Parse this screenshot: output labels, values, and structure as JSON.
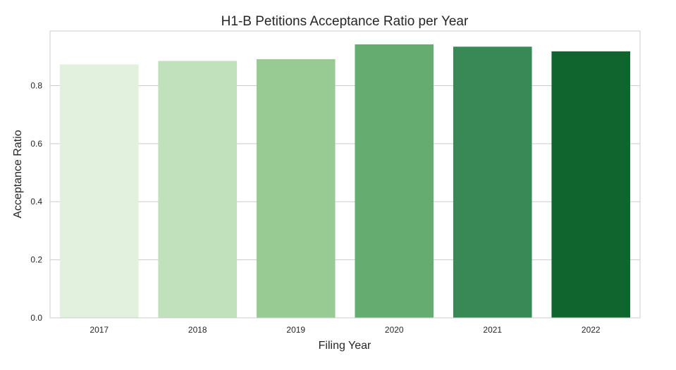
{
  "chart_data": {
    "type": "bar",
    "title": "H1-B Petitions Acceptance Ratio per Year",
    "xlabel": "Filing Year",
    "ylabel": "Acceptance Ratio",
    "categories": [
      "2017",
      "2018",
      "2019",
      "2020",
      "2021",
      "2022"
    ],
    "values": [
      0.873,
      0.885,
      0.891,
      0.942,
      0.934,
      0.918
    ],
    "ylim": [
      0,
      0.988
    ],
    "yticks": [
      0.0,
      0.2,
      0.4,
      0.6,
      0.8
    ],
    "ytick_labels": [
      "0.0",
      "0.2",
      "0.4",
      "0.6",
      "0.8"
    ],
    "grid": true,
    "colors": [
      "#e2f0de",
      "#c0e1bc",
      "#98ca93",
      "#64ac70",
      "#398957",
      "#10652f"
    ],
    "background": "#ffffff",
    "grid_color": "#cccccc",
    "spine_color": "#cccccc"
  }
}
